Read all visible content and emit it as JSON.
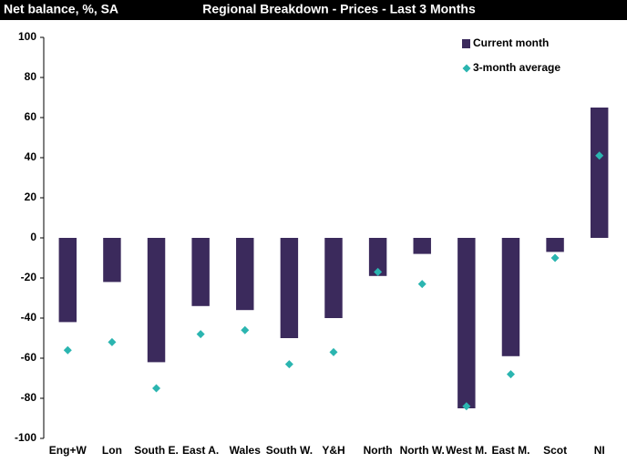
{
  "chart_data": {
    "type": "bar",
    "title": "Regional Breakdown - Prices - Last 3 Months",
    "y_label": "Net balance, %, SA",
    "categories": [
      "Eng+W",
      "Lon",
      "South E.",
      "East A.",
      "Wales",
      "South W.",
      "Y&H",
      "North",
      "North W.",
      "West M.",
      "East M.",
      "Scot",
      "NI"
    ],
    "series": [
      {
        "name": "Current month",
        "color": "#3b2a5c",
        "kind": "bar",
        "values": [
          -42,
          -22,
          -62,
          -34,
          -36,
          -50,
          -40,
          -19,
          -8,
          -85,
          -59,
          -7,
          65
        ]
      },
      {
        "name": "3-month average",
        "color": "#2bb5b0",
        "kind": "marker",
        "values": [
          -56,
          -52,
          -75,
          -48,
          -46,
          -63,
          -57,
          -17,
          -23,
          -84,
          -68,
          -10,
          41
        ]
      }
    ],
    "ylim": [
      -100,
      100
    ],
    "yticks": [
      -100,
      -80,
      -60,
      -40,
      -20,
      0,
      20,
      40,
      60,
      80,
      100
    ],
    "legend": "top-right"
  }
}
